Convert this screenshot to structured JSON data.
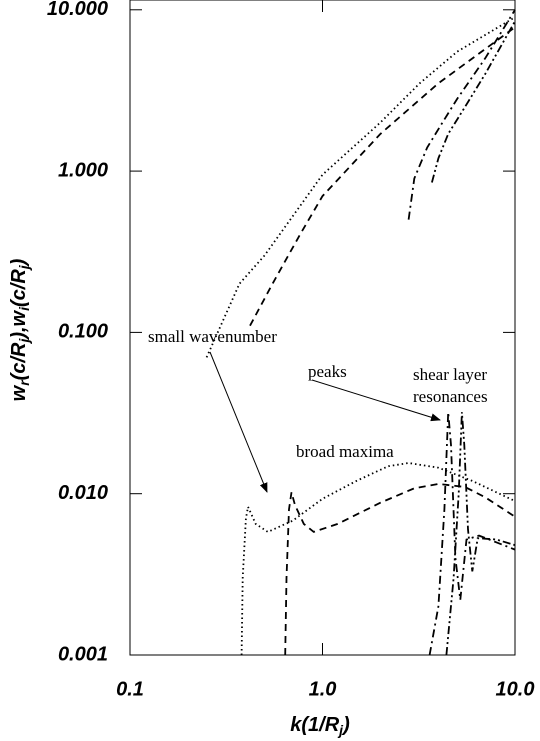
{
  "chart_data": {
    "type": "line",
    "xlabel_parts": [
      "k(1/R",
      "j",
      ")"
    ],
    "ylabel_parts": [
      "w",
      "r",
      "(c/R",
      "j",
      "),w",
      "i",
      "(c/R",
      "j",
      ")"
    ],
    "xscale": "log",
    "yscale": "log",
    "xlim": [
      0.1,
      10
    ],
    "ylim": [
      0.001,
      11.5
    ],
    "xticks": [
      {
        "value": 0.1,
        "label": "0.1"
      },
      {
        "value": 1,
        "label": "1.0"
      },
      {
        "value": 10,
        "label": "10.0"
      }
    ],
    "yticks": [
      {
        "value": 0.001,
        "label": "0.001"
      },
      {
        "value": 0.01,
        "label": "0.010"
      },
      {
        "value": 0.1,
        "label": "0.100"
      },
      {
        "value": 1,
        "label": "1.000"
      },
      {
        "value": 10,
        "label": "10.000"
      }
    ],
    "annotations": [
      "small wavenumber",
      "peaks",
      "shear layer",
      "resonances",
      "broad maxima"
    ],
    "series": [
      {
        "color": "#000000",
        "dash": "dot",
        "x": [
          0.25,
          0.37,
          0.5,
          1.0,
          2.0,
          3.2,
          5,
          10
        ],
        "values": [
          0.07,
          0.2,
          0.3,
          0.95,
          2.0,
          3.5,
          5.5,
          9.0
        ]
      },
      {
        "color": "#000000",
        "dash": "dash",
        "x": [
          0.42,
          0.55,
          0.76,
          1.0,
          2,
          4,
          10
        ],
        "values": [
          0.11,
          0.2,
          0.4,
          0.7,
          1.7,
          3.5,
          7.8
        ]
      },
      {
        "color": "#000000",
        "dash": "dashdot",
        "x": [
          2.8,
          3.0,
          3.5,
          4.2,
          5,
          7,
          10
        ],
        "values": [
          0.5,
          0.9,
          1.4,
          2.0,
          2.8,
          5,
          10
        ]
      },
      {
        "color": "#000000",
        "dash": "dashdotdot",
        "x": [
          3.7,
          4,
          4.5,
          5.5,
          7,
          10
        ],
        "values": [
          0.85,
          1.2,
          1.7,
          2.5,
          4,
          8.5
        ]
      },
      {
        "color": "#000000",
        "dash": "dot",
        "x": [
          0.38,
          0.385,
          0.4,
          0.41,
          0.45,
          0.52,
          0.7,
          1.0,
          1.5,
          2.2,
          2.8,
          4,
          6,
          10
        ],
        "values": [
          0.001,
          0.003,
          0.007,
          0.0083,
          0.0065,
          0.0058,
          0.0068,
          0.0093,
          0.012,
          0.0148,
          0.0155,
          0.0145,
          0.012,
          0.009
        ]
      },
      {
        "color": "#000000",
        "dash": "dash",
        "x": [
          0.64,
          0.65,
          0.67,
          0.69,
          0.72,
          0.8,
          0.9,
          1.2,
          2,
          3,
          4,
          5.5,
          7,
          10
        ],
        "values": [
          0.001,
          0.003,
          0.008,
          0.0102,
          0.0085,
          0.0065,
          0.0058,
          0.0065,
          0.0088,
          0.0108,
          0.0115,
          0.011,
          0.0095,
          0.0072
        ]
      },
      {
        "color": "#000000",
        "dash": "dashdot",
        "x": [
          3.6,
          4.0,
          4.3,
          4.5,
          4.65,
          4.9,
          5.2,
          5.6,
          6.5,
          8,
          10
        ],
        "values": [
          0.001,
          0.002,
          0.008,
          0.032,
          0.02,
          0.004,
          0.0022,
          0.0052,
          0.0055,
          0.005,
          0.0045
        ]
      },
      {
        "color": "#000000",
        "dash": "dashdotdot",
        "x": [
          4.4,
          4.8,
          5.1,
          5.3,
          5.45,
          5.7,
          6.0,
          6.4,
          8,
          10
        ],
        "values": [
          0.001,
          0.003,
          0.01,
          0.032,
          0.02,
          0.006,
          0.0033,
          0.0053,
          0.0052,
          0.0048
        ]
      }
    ]
  }
}
